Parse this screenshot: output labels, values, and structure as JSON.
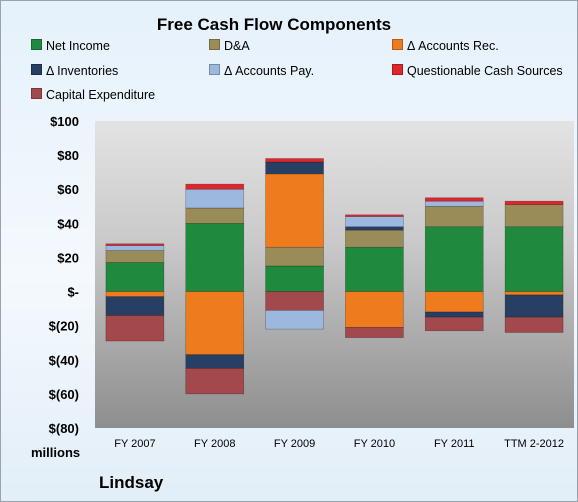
{
  "chart_data": {
    "type": "bar",
    "stacked": true,
    "title": "Free Cash Flow Components",
    "categories": [
      "FY 2007",
      "FY 2008",
      "FY 2009",
      "FY 2010",
      "FY 2011",
      "TTM 2-2012"
    ],
    "ylim": [
      -80,
      100
    ],
    "yticks": [
      {
        "value": 100,
        "label": "$100"
      },
      {
        "value": 80,
        "label": "$80"
      },
      {
        "value": 60,
        "label": "$60"
      },
      {
        "value": 40,
        "label": "$40"
      },
      {
        "value": 20,
        "label": "$20"
      },
      {
        "value": 0,
        "label": "$-"
      },
      {
        "value": -20,
        "label": "$(20)"
      },
      {
        "value": -40,
        "label": "$(40)"
      },
      {
        "value": -60,
        "label": "$(60)"
      },
      {
        "value": -80,
        "label": "$(80)"
      }
    ],
    "legend_placement": "top",
    "series": [
      {
        "name": "Net Income",
        "color": "#1f8a3e",
        "values": [
          17,
          40,
          15,
          26,
          38,
          38
        ]
      },
      {
        "name": "D&A",
        "color": "#9a8c58",
        "values": [
          7,
          9,
          11,
          10,
          12,
          13
        ]
      },
      {
        "name": "Δ Accounts Rec.",
        "color": "#ee7b1d",
        "values": [
          -3,
          -37,
          43,
          -21,
          -12,
          -2
        ]
      },
      {
        "name": "Δ Inventories",
        "color": "#263f63",
        "values": [
          -11,
          -8,
          7,
          2,
          -3,
          -13
        ]
      },
      {
        "name": "Δ Accounts Pay.",
        "color": "#9db8de",
        "values": [
          3,
          11,
          0,
          6,
          3,
          0
        ]
      },
      {
        "name": "Questionable Cash Sources",
        "color": "#e0262a",
        "values": [
          1,
          3,
          2,
          1,
          2,
          2
        ]
      },
      {
        "name": "Capital Expenditure",
        "color": "#a3484b",
        "values": [
          -15,
          -15,
          -11,
          -6,
          -8,
          -9
        ]
      }
    ],
    "extra_segments": [
      {
        "series": "Δ Accounts Pay.",
        "category": "FY 2009",
        "value": -11
      }
    ],
    "gridlines": false
  },
  "unit_label": "millions",
  "company": "Lindsay"
}
